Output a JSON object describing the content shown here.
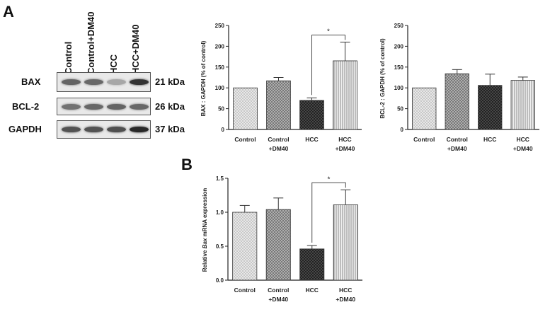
{
  "panel_a_label": "A",
  "panel_b_label": "B",
  "western_blot": {
    "lanes": [
      "Control",
      "Control+DM40",
      "HCC",
      "HCC+DM40"
    ],
    "rows": [
      {
        "name": "BAX",
        "kda": "21 kDa",
        "intensity": [
          0.62,
          0.6,
          0.3,
          0.85
        ]
      },
      {
        "name": "BCL-2",
        "kda": "26 kDa",
        "intensity": [
          0.55,
          0.6,
          0.62,
          0.6
        ]
      },
      {
        "name": "GAPDH",
        "kda": "37 kDa",
        "intensity": [
          0.7,
          0.7,
          0.72,
          0.9
        ]
      }
    ]
  },
  "chart_data": [
    {
      "type": "bar",
      "id": "bax",
      "categories": [
        [
          "Control"
        ],
        [
          "Control",
          "+DM40"
        ],
        [
          "HCC"
        ],
        [
          "HCC",
          "+DM40"
        ]
      ],
      "values": [
        100,
        117,
        70,
        165
      ],
      "errors": [
        0,
        8,
        6,
        45
      ],
      "ylabel": "BAX : GAPDH (% of control)",
      "ylim": [
        0,
        250
      ],
      "yticks": [
        "0",
        "50",
        "100",
        "150",
        "200",
        "250"
      ],
      "significance": {
        "between": [
          2,
          3
        ],
        "label": "*"
      },
      "patterns": [
        "dots",
        "cross",
        "darkcross",
        "vlines"
      ]
    },
    {
      "type": "bar",
      "id": "bcl2",
      "categories": [
        [
          "Control"
        ],
        [
          "Control",
          "+DM40"
        ],
        [
          "HCC"
        ],
        [
          "HCC",
          "+DM40"
        ]
      ],
      "values": [
        100,
        134,
        106,
        118
      ],
      "errors": [
        0,
        10,
        27,
        8
      ],
      "ylabel": "BCL-2 : GAPDH (% of control)",
      "ylim": [
        0,
        250
      ],
      "yticks": [
        "0",
        "50",
        "100",
        "150",
        "200",
        "250"
      ],
      "patterns": [
        "dots",
        "cross",
        "darkcross",
        "vlines"
      ]
    },
    {
      "type": "bar",
      "id": "mrna",
      "categories": [
        [
          "Control"
        ],
        [
          "Control",
          "+DM40"
        ],
        [
          "HCC"
        ],
        [
          "HCC",
          "+DM40"
        ]
      ],
      "values": [
        1.0,
        1.04,
        0.46,
        1.11
      ],
      "errors": [
        0.1,
        0.17,
        0.05,
        0.22
      ],
      "ylabel": "Relative Bax mRNA expression",
      "ylim": [
        0,
        1.5
      ],
      "yticks": [
        "0.0",
        "0.5",
        "1.0",
        "1.5"
      ],
      "significance": {
        "between": [
          2,
          3
        ],
        "label": "*"
      },
      "patterns": [
        "dots",
        "cross",
        "darkcross",
        "vlines"
      ]
    }
  ]
}
